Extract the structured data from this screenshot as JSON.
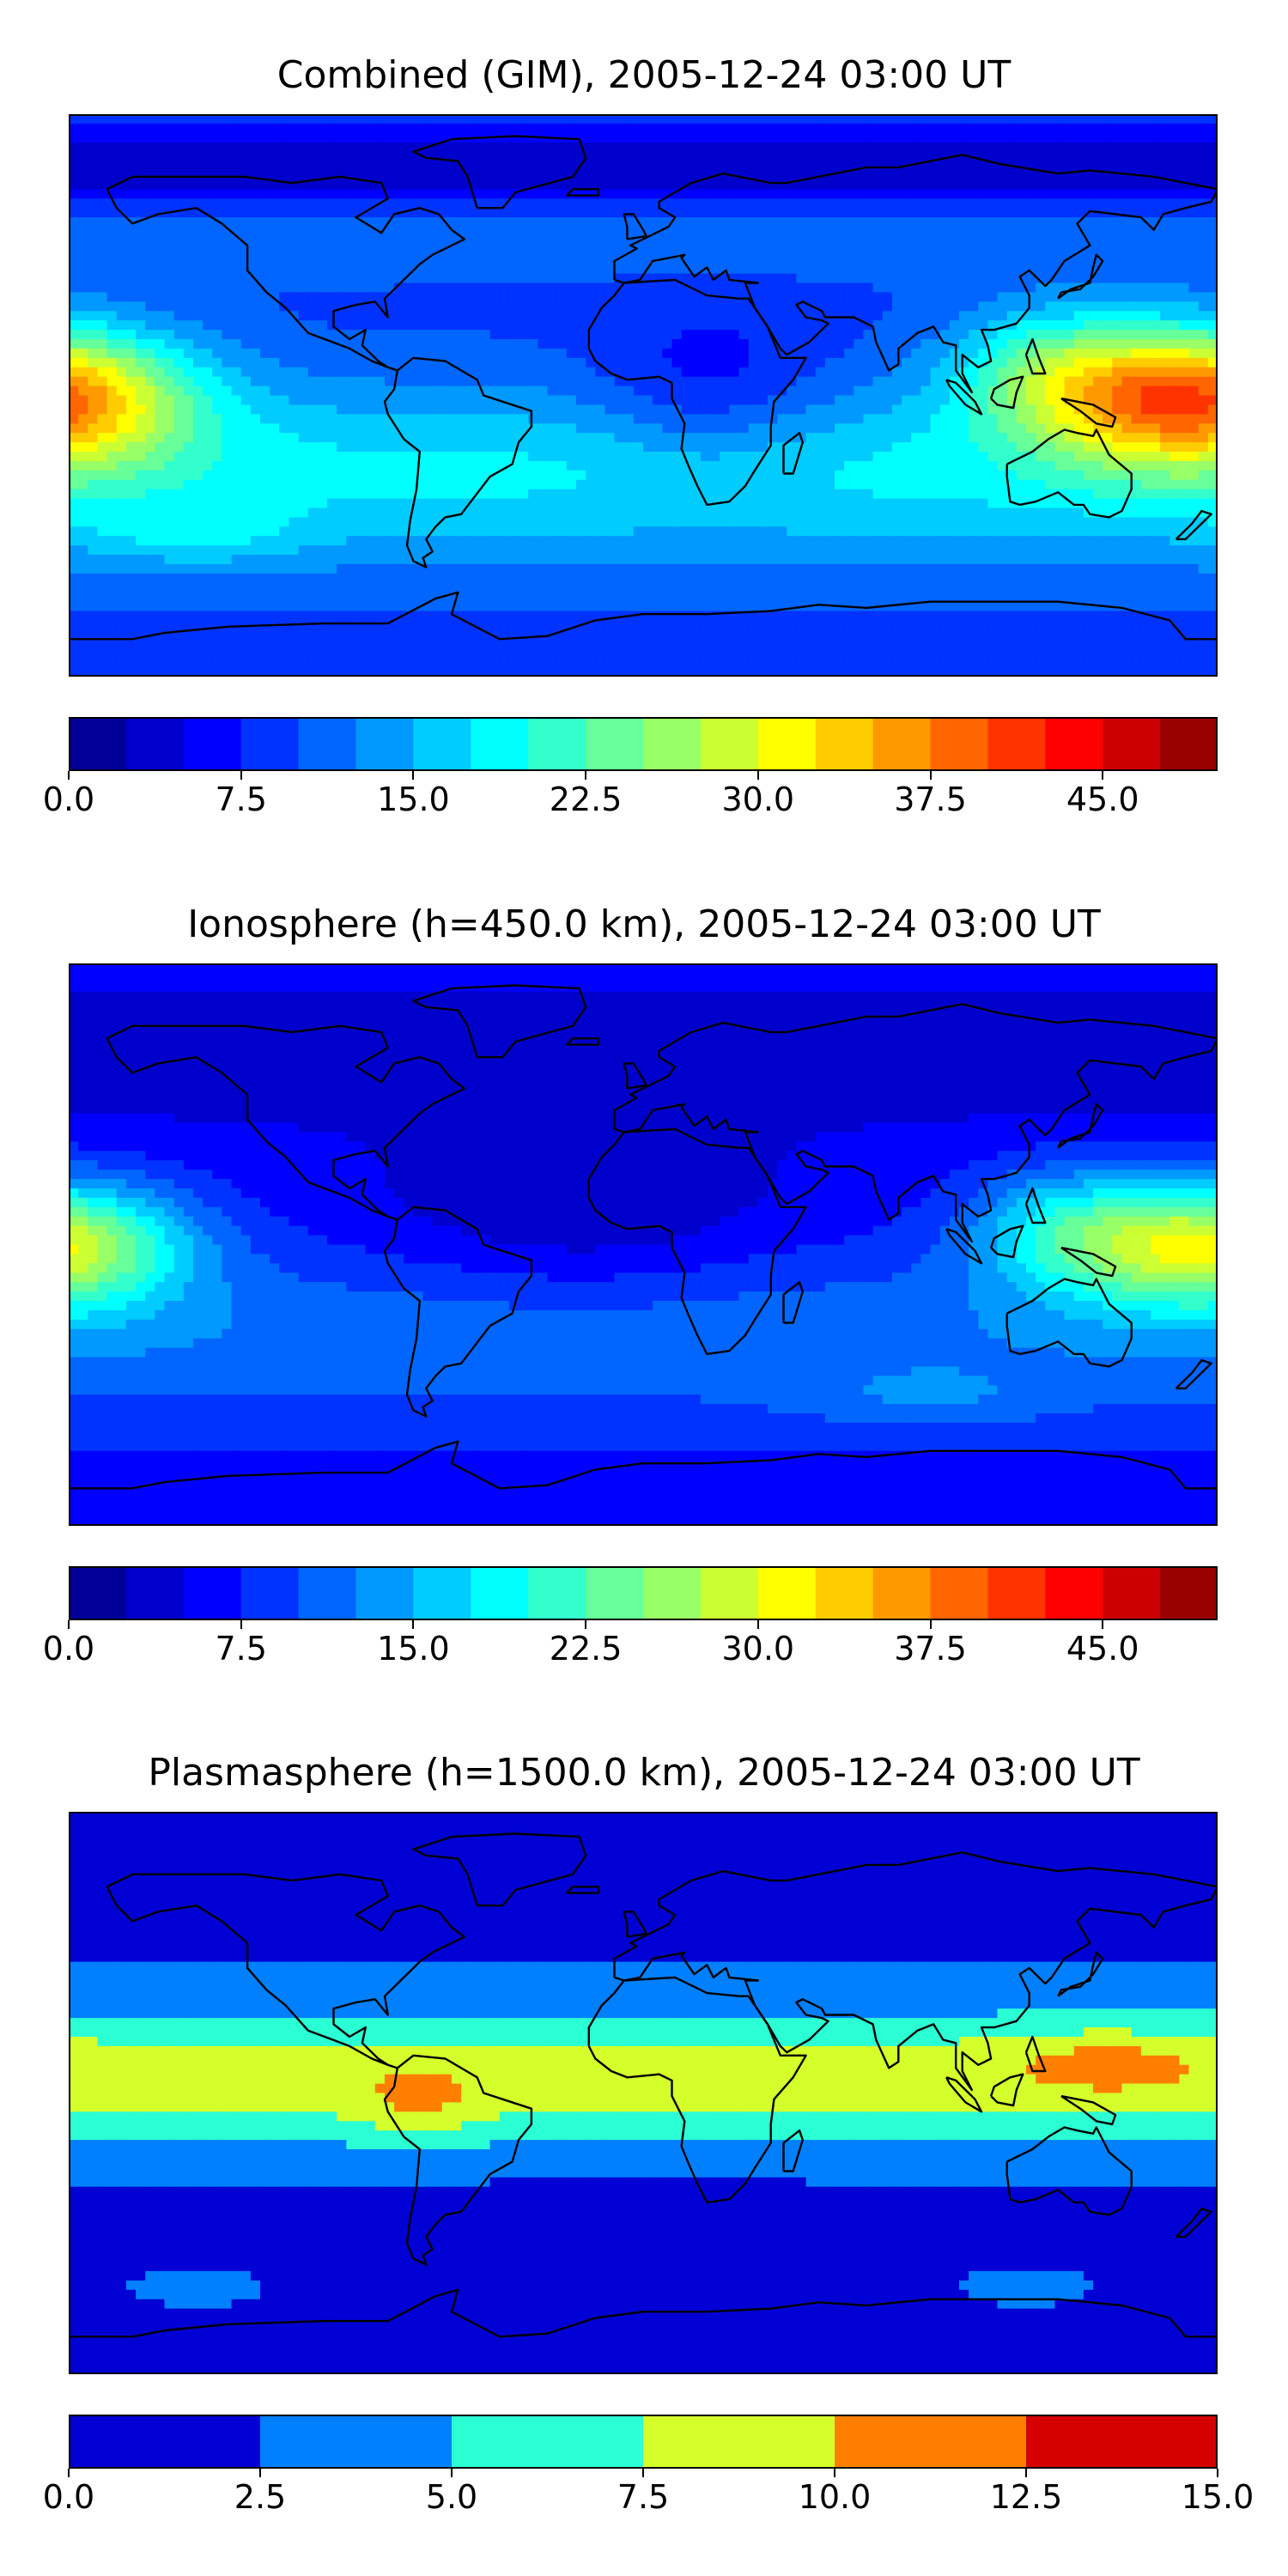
{
  "panels": [
    {
      "title": "Combined (GIM), 2005-12-24 03:00 UT",
      "field": "combined",
      "colorbar": {
        "min": 0,
        "max": 50,
        "levels": 20,
        "ticks": [
          "0.0",
          "7.5",
          "15.0",
          "22.5",
          "30.0",
          "37.5",
          "45.0"
        ],
        "tick_values": [
          0,
          7.5,
          15,
          22.5,
          30,
          37.5,
          45
        ]
      }
    },
    {
      "title": "Ionosphere  (h=450.0 km), 2005-12-24 03:00 UT",
      "field": "ionosphere",
      "colorbar": {
        "min": 0,
        "max": 50,
        "levels": 20,
        "ticks": [
          "0.0",
          "7.5",
          "15.0",
          "22.5",
          "30.0",
          "37.5",
          "45.0"
        ],
        "tick_values": [
          0,
          7.5,
          15,
          22.5,
          30,
          37.5,
          45
        ]
      }
    },
    {
      "title": "Plasmasphere (h=1500.0 km), 2005-12-24 03:00 UT",
      "field": "plasmasphere",
      "colorbar": {
        "min": 0,
        "max": 15,
        "levels": 6,
        "ticks": [
          "0.0",
          "2.5",
          "5.0",
          "7.5",
          "10.0",
          "12.5",
          "15.0"
        ],
        "tick_values": [
          0,
          2.5,
          5,
          7.5,
          10,
          12.5,
          15
        ]
      }
    }
  ],
  "colormap": "jet",
  "projection": "equirectangular",
  "coastlines": true
}
